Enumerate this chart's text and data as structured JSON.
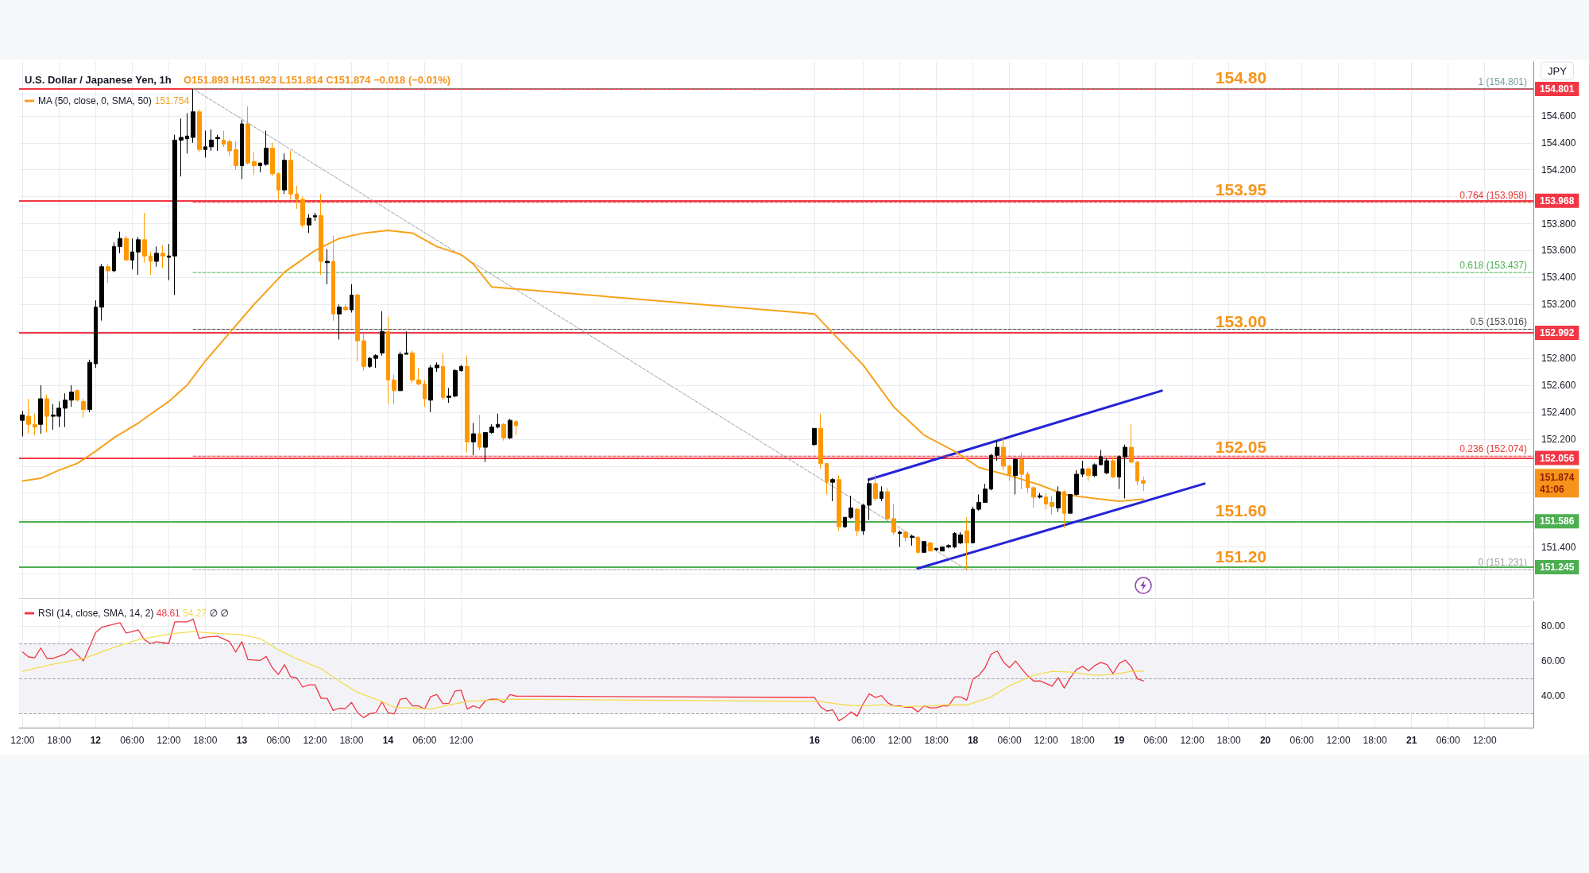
{
  "chart_data": [
    {
      "type": "candlestick",
      "title": "U.S. Dollar / Japanese Yen, 1h",
      "subtitle": "O151.893 H151.923 L151.814 C151.874 −0.018 (−0.01%)",
      "ylabel": "JPY",
      "annotations": [
        "151.754",
        "151.874",
        "41:06",
        {
          "text": "154.80",
          "x": "--02-19T20:00",
          "y": 154.801
        },
        {
          "text": "153.95",
          "x": "--02-19T20:00",
          "y": 153.968
        },
        {
          "text": "153.00",
          "x": "--02-19T20:00",
          "y": 152.992
        },
        {
          "text": "152.05",
          "x": "--02-19T20:00",
          "y": 152.056
        },
        {
          "text": "151.60",
          "x": "--02-19T20:00",
          "y": 151.586
        },
        {
          "text": "151.20",
          "x": "--02-19T20:00",
          "y": 151.245
        }
      ],
      "x": [
        "--02-11T12:00",
        "--02-11T13:00",
        "--02-11T14:00",
        "--02-11T15:00",
        "--02-11T16:00",
        "--02-11T17:00",
        "--02-11T18:00",
        "--02-11T19:00",
        "--02-11T20:00",
        "--02-11T21:00",
        "--02-11T22:00",
        "--02-11T23:00",
        "--02-12T00:00",
        "--02-12T01:00",
        "--02-12T02:00",
        "--02-12T03:00",
        "--02-12T04:00",
        "--02-12T05:00",
        "--02-12T06:00",
        "--02-12T07:00",
        "--02-12T08:00",
        "--02-12T09:00",
        "--02-12T10:00",
        "--02-12T11:00",
        "--02-12T12:00",
        "--02-12T13:00",
        "--02-12T14:00",
        "--02-12T15:00",
        "--02-12T16:00",
        "--02-12T17:00",
        "--02-12T18:00",
        "--02-12T19:00",
        "--02-12T20:00",
        "--02-12T21:00",
        "--02-12T22:00",
        "--02-12T23:00",
        "--02-13T00:00",
        "--02-13T01:00",
        "--02-13T02:00",
        "--02-13T03:00",
        "--02-13T04:00",
        "--02-13T05:00",
        "--02-13T06:00",
        "--02-13T07:00",
        "--02-13T08:00",
        "--02-13T09:00",
        "--02-13T10:00",
        "--02-13T11:00",
        "--02-13T12:00",
        "--02-13T13:00",
        "--02-13T14:00",
        "--02-13T15:00",
        "--02-13T16:00",
        "--02-13T17:00",
        "--02-13T18:00",
        "--02-13T19:00",
        "--02-13T20:00",
        "--02-13T21:00",
        "--02-13T22:00",
        "--02-13T23:00",
        "--02-14T00:00",
        "--02-14T01:00",
        "--02-14T02:00",
        "--02-14T03:00",
        "--02-14T04:00",
        "--02-14T05:00",
        "--02-14T06:00",
        "--02-14T07:00",
        "--02-14T08:00",
        "--02-14T09:00",
        "--02-14T10:00",
        "--02-14T11:00",
        "--02-14T12:00",
        "--02-14T13:00",
        "--02-14T14:00",
        "--02-14T15:00",
        "--02-14T16:00",
        "--02-14T17:00",
        "--02-14T18:00",
        "--02-14T19:00",
        "--02-14T20:00",
        "--02-14T21:00",
        "--02-16T22:00",
        "--02-16T23:00",
        "--02-17T00:00",
        "--02-17T01:00",
        "--02-17T02:00",
        "--02-17T03:00",
        "--02-17T04:00",
        "--02-17T05:00",
        "--02-17T06:00",
        "--02-17T07:00",
        "--02-17T08:00",
        "--02-17T09:00",
        "--02-17T10:00",
        "--02-17T11:00",
        "--02-17T12:00",
        "--02-17T13:00",
        "--02-17T14:00",
        "--02-17T15:00",
        "--02-17T16:00",
        "--02-17T17:00",
        "--02-17T18:00",
        "--02-17T19:00",
        "--02-17T20:00",
        "--02-17T21:00",
        "--02-17T22:00",
        "--02-17T23:00",
        "--02-18T00:00",
        "--02-18T01:00",
        "--02-18T02:00",
        "--02-18T03:00",
        "--02-18T04:00",
        "--02-18T05:00",
        "--02-18T06:00",
        "--02-18T07:00",
        "--02-18T08:00",
        "--02-18T09:00",
        "--02-18T10:00",
        "--02-18T11:00",
        "--02-18T12:00",
        "--02-18T13:00",
        "--02-18T14:00",
        "--02-18T15:00",
        "--02-18T16:00",
        "--02-18T17:00",
        "--02-18T18:00",
        "--02-18T19:00",
        "--02-18T20:00",
        "--02-18T21:00",
        "--02-18T22:00",
        "--02-18T23:00",
        "--02-19T00:00",
        "--02-19T01:00",
        "--02-19T02:00",
        "--02-19T03:00",
        "--02-19T04:00"
      ],
      "ohlc": [
        [
          152.34,
          152.41,
          152.22,
          152.38
        ],
        [
          152.37,
          152.5,
          152.24,
          152.31
        ],
        [
          152.31,
          152.39,
          152.23,
          152.29
        ],
        [
          152.31,
          152.6,
          152.24,
          152.5
        ],
        [
          152.5,
          152.53,
          152.25,
          152.37
        ],
        [
          152.37,
          152.46,
          152.27,
          152.38
        ],
        [
          152.37,
          152.48,
          152.29,
          152.43
        ],
        [
          152.43,
          152.54,
          152.29,
          152.49
        ],
        [
          152.49,
          152.6,
          152.44,
          152.55
        ],
        [
          152.56,
          152.57,
          152.48,
          152.49
        ],
        [
          152.48,
          152.5,
          152.36,
          152.42
        ],
        [
          152.42,
          152.79,
          152.4,
          152.77
        ],
        [
          152.76,
          153.23,
          152.73,
          153.18
        ],
        [
          153.18,
          153.5,
          153.08,
          153.48
        ],
        [
          153.48,
          153.5,
          153.36,
          153.45
        ],
        [
          153.45,
          153.66,
          153.44,
          153.63
        ],
        [
          153.63,
          153.74,
          153.58,
          153.69
        ],
        [
          153.69,
          153.71,
          153.53,
          153.53
        ],
        [
          153.53,
          153.69,
          153.46,
          153.59
        ],
        [
          153.59,
          153.7,
          153.42,
          153.68
        ],
        [
          153.68,
          153.88,
          153.51,
          153.56
        ],
        [
          153.56,
          153.59,
          153.42,
          153.52
        ],
        [
          153.52,
          153.63,
          153.48,
          153.58
        ],
        [
          153.58,
          153.64,
          153.47,
          153.56
        ],
        [
          153.55,
          153.65,
          153.38,
          153.56
        ],
        [
          153.56,
          154.46,
          153.27,
          154.42
        ],
        [
          154.42,
          154.58,
          154.15,
          154.44
        ],
        [
          154.43,
          154.62,
          154.32,
          154.45
        ],
        [
          154.44,
          154.8,
          154.4,
          154.63
        ],
        [
          154.63,
          154.65,
          154.33,
          154.35
        ],
        [
          154.35,
          154.49,
          154.29,
          154.37
        ],
        [
          154.37,
          154.5,
          154.34,
          154.42
        ],
        [
          154.43,
          154.46,
          154.34,
          154.44
        ],
        [
          154.42,
          154.49,
          154.37,
          154.39
        ],
        [
          154.41,
          154.42,
          154.3,
          154.34
        ],
        [
          154.35,
          154.41,
          154.2,
          154.23
        ],
        [
          154.23,
          154.57,
          154.13,
          154.54
        ],
        [
          154.54,
          154.67,
          154.24,
          154.25
        ],
        [
          154.26,
          154.33,
          154.16,
          154.23
        ],
        [
          154.23,
          154.25,
          154.18,
          154.25
        ],
        [
          154.24,
          154.49,
          154.23,
          154.36
        ],
        [
          154.36,
          154.4,
          154.15,
          154.17
        ],
        [
          154.17,
          154.18,
          153.98,
          154.05
        ],
        [
          154.05,
          154.32,
          154.02,
          154.27
        ],
        [
          154.27,
          154.34,
          153.98,
          154.02
        ],
        [
          154.02,
          154.08,
          153.91,
          153.98
        ],
        [
          153.98,
          154.0,
          153.77,
          153.79
        ],
        [
          153.79,
          153.87,
          153.73,
          153.84
        ],
        [
          153.85,
          153.88,
          153.82,
          153.86
        ],
        [
          153.86,
          154.02,
          153.42,
          153.52
        ],
        [
          153.51,
          153.61,
          153.35,
          153.52
        ],
        [
          153.52,
          153.71,
          153.08,
          153.13
        ],
        [
          153.13,
          153.2,
          152.94,
          153.18
        ],
        [
          153.18,
          153.2,
          153.15,
          153.16
        ],
        [
          153.16,
          153.35,
          153.14,
          153.27
        ],
        [
          153.27,
          153.28,
          152.78,
          152.93
        ],
        [
          152.93,
          152.98,
          152.71,
          152.74
        ],
        [
          152.74,
          152.81,
          152.73,
          152.8
        ],
        [
          152.8,
          152.83,
          152.73,
          152.82
        ],
        [
          152.84,
          153.15,
          152.82,
          153.0
        ],
        [
          153.0,
          153.11,
          152.46,
          152.64
        ],
        [
          152.64,
          152.68,
          152.46,
          152.56
        ],
        [
          152.56,
          152.85,
          152.56,
          152.83
        ],
        [
          152.83,
          153.0,
          152.83,
          152.84
        ],
        [
          152.84,
          152.86,
          152.62,
          152.64
        ],
        [
          152.64,
          152.73,
          152.6,
          152.61
        ],
        [
          152.61,
          152.64,
          152.44,
          152.5
        ],
        [
          152.49,
          152.75,
          152.4,
          152.73
        ],
        [
          152.73,
          152.77,
          152.7,
          152.75
        ],
        [
          152.74,
          152.84,
          152.49,
          152.51
        ],
        [
          152.51,
          152.58,
          152.47,
          152.52
        ],
        [
          152.52,
          152.72,
          152.51,
          152.71
        ],
        [
          152.71,
          152.75,
          152.7,
          152.74
        ],
        [
          152.74,
          152.82,
          152.1,
          152.18
        ],
        [
          152.18,
          152.32,
          152.08,
          152.24
        ],
        [
          152.24,
          152.38,
          152.12,
          152.14
        ],
        [
          152.14,
          152.25,
          152.03,
          152.25
        ],
        [
          152.25,
          152.31,
          152.24,
          152.29
        ],
        [
          152.29,
          152.39,
          152.28,
          152.31
        ],
        [
          152.31,
          152.32,
          152.19,
          152.21
        ],
        [
          152.21,
          152.35,
          152.2,
          152.34
        ],
        [
          152.33,
          152.34,
          152.23,
          152.3
        ],
        [
          152.16,
          152.28,
          152.15,
          152.28
        ],
        [
          152.28,
          152.39,
          151.98,
          152.02
        ],
        [
          152.02,
          152.02,
          151.79,
          151.88
        ],
        [
          151.88,
          151.91,
          151.74,
          151.9
        ],
        [
          151.9,
          151.93,
          151.52,
          151.55
        ],
        [
          151.55,
          151.62,
          151.54,
          151.62
        ],
        [
          151.62,
          151.78,
          151.61,
          151.69
        ],
        [
          151.68,
          151.69,
          151.48,
          151.52
        ],
        [
          151.52,
          151.72,
          151.49,
          151.71
        ],
        [
          151.71,
          151.91,
          151.6,
          151.87
        ],
        [
          151.87,
          151.94,
          151.74,
          151.76
        ],
        [
          151.76,
          151.85,
          151.74,
          151.81
        ],
        [
          151.81,
          151.84,
          151.6,
          151.61
        ],
        [
          151.61,
          151.72,
          151.49,
          151.51
        ],
        [
          151.5,
          151.52,
          151.4,
          151.51
        ],
        [
          151.51,
          151.52,
          151.44,
          151.47
        ],
        [
          151.47,
          151.49,
          151.41,
          151.48
        ],
        [
          151.47,
          151.48,
          151.35,
          151.36
        ],
        [
          151.36,
          151.44,
          151.36,
          151.44
        ],
        [
          151.43,
          151.44,
          151.37,
          151.37
        ],
        [
          151.38,
          151.39,
          151.37,
          151.39
        ],
        [
          151.37,
          151.4,
          151.37,
          151.4
        ],
        [
          151.4,
          151.42,
          151.39,
          151.41
        ],
        [
          151.4,
          151.51,
          151.39,
          151.5
        ],
        [
          151.43,
          151.51,
          151.42,
          151.49
        ],
        [
          151.52,
          151.62,
          151.23,
          151.43
        ],
        [
          151.43,
          151.7,
          151.43,
          151.68
        ],
        [
          151.68,
          151.79,
          151.67,
          151.73
        ],
        [
          151.73,
          151.87,
          151.73,
          151.83
        ],
        [
          151.83,
          152.09,
          151.82,
          152.08
        ],
        [
          152.08,
          152.19,
          152.04,
          152.14
        ],
        [
          152.14,
          152.22,
          151.97,
          152.0
        ],
        [
          152.0,
          152.01,
          151.89,
          151.94
        ],
        [
          151.93,
          152.06,
          151.79,
          152.05
        ],
        [
          152.05,
          152.1,
          151.83,
          151.94
        ],
        [
          151.94,
          151.96,
          151.8,
          151.84
        ],
        [
          151.84,
          151.85,
          151.69,
          151.77
        ],
        [
          151.77,
          151.8,
          151.76,
          151.78
        ],
        [
          151.77,
          151.8,
          151.68,
          151.72
        ],
        [
          151.73,
          151.78,
          151.64,
          151.7
        ],
        [
          151.69,
          151.85,
          151.66,
          151.81
        ],
        [
          151.81,
          151.82,
          151.54,
          151.65
        ],
        [
          151.65,
          151.79,
          151.65,
          151.79
        ],
        [
          151.79,
          151.97,
          151.78,
          151.94
        ],
        [
          151.94,
          152.04,
          151.92,
          151.98
        ],
        [
          151.98,
          151.99,
          151.89,
          151.93
        ],
        [
          151.93,
          152.02,
          151.92,
          152.01
        ],
        [
          152.01,
          152.12,
          152.01,
          152.07
        ],
        [
          151.95,
          152.06,
          151.94,
          152.04
        ],
        [
          152.04,
          152.07,
          151.91,
          151.92
        ],
        [
          151.92,
          152.08,
          151.83,
          152.07
        ],
        [
          152.07,
          152.16,
          151.76,
          152.14
        ],
        [
          152.14,
          152.31,
          152.02,
          152.03
        ],
        [
          152.03,
          152.04,
          151.86,
          151.89
        ],
        [
          151.893,
          151.923,
          151.814,
          151.874
        ]
      ],
      "series": [
        {
          "type": "line",
          "color": "#2424d6",
          "x": [
            "--02-17T06:54",
            "--02-19T07:00"
          ],
          "values": [
            151.9,
            152.56
          ]
        },
        {
          "type": "line",
          "color": "#2424d6",
          "x": [
            "--02-17T14:54",
            "--02-19T14:00"
          ],
          "values": [
            151.24,
            151.87
          ]
        },
        {
          "type": "line",
          "color": "#9e9e9e",
          "line_style": "dashed",
          "x": [
            "--02-12T16:00",
            "--02-17T23:00"
          ],
          "values": [
            154.801,
            151.231
          ]
        },
        {
          "type": "line",
          "color": "#6f9f9c",
          "line_style": "dashed",
          "x": [
            "--02-12T16:00",
            "--02-21T20:00"
          ],
          "values": [
            154.801,
            154.801
          ],
          "value_labels": [
            null,
            "1 (154.801)"
          ]
        },
        {
          "type": "line",
          "color": "#e53935",
          "line_style": "dashed",
          "x": [
            "--02-12T16:00",
            "--02-21T20:00"
          ],
          "values": [
            153.958,
            153.958
          ],
          "value_labels": [
            null,
            "0.764 (153.958)"
          ]
        },
        {
          "type": "line",
          "color": "#4caf50",
          "line_style": "dashed",
          "x": [
            "--02-12T16:00",
            "--02-21T20:00"
          ],
          "values": [
            153.437,
            153.437
          ],
          "value_labels": [
            null,
            "0.618 (153.437)"
          ]
        },
        {
          "type": "line",
          "color": "#4a4a4a",
          "line_style": "dashed",
          "x": [
            "--02-12T16:00",
            "--02-21T20:00"
          ],
          "values": [
            153.016,
            153.016
          ],
          "value_labels": [
            null,
            "0.5 (153.016)"
          ]
        },
        {
          "type": "line",
          "color": "#e53935",
          "line_style": "dashed",
          "x": [
            "--02-12T16:00",
            "--02-21T20:00"
          ],
          "values": [
            152.074,
            152.074
          ],
          "value_labels": [
            null,
            "0.236 (152.074)"
          ]
        },
        {
          "type": "line",
          "color": "#9e9e9e",
          "line_style": "dashed",
          "x": [
            "--02-12T16:00",
            "--02-21T20:00"
          ],
          "values": [
            151.231,
            151.231
          ],
          "value_labels": [
            null,
            "0 (151.231)"
          ]
        },
        {
          "type": "line",
          "name": "MA (50, close, 0, SMA, 50)",
          "color": "#f7a21b",
          "x": [
            "--02-11T12:00",
            "--02-11T15:00",
            "--02-11T18:00",
            "--02-11T21:00",
            "--02-12T00:00",
            "--02-12T03:00",
            "--02-12T07:00",
            "--02-12T12:00",
            "--02-12T15:00",
            "--02-12T18:00",
            "--02-12T22:00",
            "--02-13T02:00",
            "--02-13T07:00",
            "--02-13T12:00",
            "--02-13T16:00",
            "--02-13T20:00",
            "--02-14T00:00",
            "--02-14T04:00",
            "--02-14T08:00",
            "--02-14T12:00",
            "--02-14T14:00",
            "--02-14T17:00",
            "--02-16T22:00",
            "--02-17T06:00",
            "--02-17T11:00",
            "--02-17T16:00",
            "--02-17T21:00",
            "--02-18T01:00",
            "--02-18T06:00",
            "--02-18T11:00",
            "--02-18T15:00",
            "--02-18T20:00",
            "--02-19T00:00",
            "--02-19T04:00"
          ],
          "values": [
            151.89,
            151.91,
            151.97,
            152.02,
            152.11,
            152.21,
            152.32,
            152.48,
            152.6,
            152.78,
            152.99,
            153.2,
            153.44,
            153.6,
            153.69,
            153.73,
            153.75,
            153.73,
            153.63,
            153.57,
            153.5,
            153.33,
            153.13,
            152.75,
            152.44,
            152.23,
            152.11,
            151.99,
            151.93,
            151.86,
            151.79,
            151.76,
            151.74,
            151.754
          ]
        }
      ],
      "ref_lines": [
        {
          "axis": "y",
          "value": 154.801,
          "label": "154.801",
          "color": "#f23645"
        },
        {
          "axis": "y",
          "value": 153.968,
          "label": "153.968",
          "color": "#f23645"
        },
        {
          "axis": "y",
          "value": 152.992,
          "label": "152.992",
          "color": "#f23645"
        },
        {
          "axis": "y",
          "value": 152.056,
          "label": "152.056",
          "color": "#f23645"
        },
        {
          "axis": "y",
          "value": 151.586,
          "label": "151.586",
          "color": "#4caf50"
        },
        {
          "axis": "y",
          "value": 151.245,
          "label": "151.245",
          "color": "#4caf50"
        }
      ],
      "xlim": [
        "--02-11T11:26",
        "--02-21T20:00"
      ],
      "xticks": [
        {
          "value": "--02-11T12:00",
          "label": null
        },
        {
          "value": "--02-11T18:00",
          "label": null
        },
        {
          "value": "--02-12T00:00",
          "label": null
        },
        {
          "value": "--02-12T06:00",
          "label": null
        },
        {
          "value": "--02-12T12:00",
          "label": null
        },
        {
          "value": "--02-12T18:00",
          "label": null
        },
        {
          "value": "--02-13T00:00",
          "label": null
        },
        {
          "value": "--02-13T06:00",
          "label": null
        },
        {
          "value": "--02-13T12:00",
          "label": null
        },
        {
          "value": "--02-13T18:00",
          "label": null
        },
        {
          "value": "--02-14T00:00",
          "label": null
        },
        {
          "value": "--02-14T06:00",
          "label": null
        },
        {
          "value": "--02-14T12:00",
          "label": null
        },
        {
          "value": "--02-16T22:00",
          "label": null
        },
        {
          "value": "--02-17T06:00",
          "label": null
        },
        {
          "value": "--02-17T12:00",
          "label": null
        },
        {
          "value": "--02-17T18:00",
          "label": null
        },
        {
          "value": "--02-18T00:00",
          "label": null
        },
        {
          "value": "--02-18T06:00",
          "label": null
        },
        {
          "value": "--02-18T12:00",
          "label": null
        },
        {
          "value": "--02-18T18:00",
          "label": null
        },
        {
          "value": "--02-19T00:00",
          "label": null
        },
        {
          "value": "--02-19T06:00",
          "label": null
        },
        {
          "value": "--02-19T12:00",
          "label": null
        },
        {
          "value": "--02-19T18:00",
          "label": null
        },
        {
          "value": "--02-20T00:00",
          "label": null
        },
        {
          "value": "--02-20T06:00",
          "label": null
        },
        {
          "value": "--02-20T12:00",
          "label": null
        },
        {
          "value": "--02-20T18:00",
          "label": null
        },
        {
          "value": "--02-21T00:00",
          "label": null
        },
        {
          "value": "--02-21T06:00",
          "label": null
        },
        {
          "value": "--02-21T12:00",
          "label": null
        }
      ],
      "ylim": [
        151.02,
        155
      ],
      "yticks": [
        {
          "value": 151.2,
          "label": null
        },
        {
          "value": 151.4,
          "label": "151.400"
        },
        {
          "value": 151.6,
          "label": null
        },
        {
          "value": 151.8,
          "label": null
        },
        {
          "value": 152,
          "label": null
        },
        {
          "value": 152.2,
          "label": "152.200"
        },
        {
          "value": 152.4,
          "label": "152.400"
        },
        {
          "value": 152.6,
          "label": "152.600"
        },
        {
          "value": 152.8,
          "label": "152.800"
        },
        {
          "value": 153,
          "label": null
        },
        {
          "value": 153.2,
          "label": "153.200"
        },
        {
          "value": 153.4,
          "label": "153.400"
        },
        {
          "value": 153.6,
          "label": "153.600"
        },
        {
          "value": 153.8,
          "label": "153.800"
        },
        {
          "value": 154,
          "label": null
        },
        {
          "value": 154.2,
          "label": "154.200"
        },
        {
          "value": 154.4,
          "label": "154.400"
        },
        {
          "value": 154.6,
          "label": "154.600"
        },
        {
          "value": 154.8,
          "label": null
        }
      ],
      "grid": true,
      "legend": "top left",
      "tick_labels": "y"
    },
    {
      "type": "line",
      "annotations": [
        "48.61",
        "54.27",
        "∅ ∅"
      ],
      "series": [
        {
          "name": "RSI (14, close, SMA, 14, 2)",
          "color": "#f23645",
          "x": [
            "--02-11T12:00",
            "--02-11T13:00",
            "--02-11T14:00",
            "--02-11T15:00",
            "--02-11T16:00",
            "--02-11T17:00",
            "--02-11T19:00",
            "--02-11T20:00",
            "--02-11T22:00",
            "--02-12T00:00",
            "--02-12T01:00",
            "--02-12T04:00",
            "--02-12T05:00",
            "--02-12T06:00",
            "--02-12T07:00",
            "--02-12T08:00",
            "--02-12T09:00",
            "--02-12T10:00",
            "--02-12T12:00",
            "--02-12T13:00",
            "--02-12T15:00",
            "--02-12T16:00",
            "--02-12T17:00",
            "--02-12T18:00",
            "--02-12T20:00",
            "--02-12T22:00",
            "--02-12T23:00",
            "--02-13T00:00",
            "--02-13T01:00",
            "--02-13T03:00",
            "--02-13T04:00",
            "--02-13T05:00",
            "--02-13T06:00",
            "--02-13T07:00",
            "--02-13T08:00",
            "--02-13T09:00",
            "--02-13T10:00",
            "--02-13T11:00",
            "--02-13T12:00",
            "--02-13T13:00",
            "--02-13T14:00",
            "--02-13T15:00",
            "--02-13T16:00",
            "--02-13T17:00",
            "--02-13T18:00",
            "--02-13T19:00",
            "--02-13T20:00",
            "--02-13T21:00",
            "--02-13T22:00",
            "--02-13T23:00",
            "--02-14T00:00",
            "--02-14T01:00",
            "--02-14T02:00",
            "--02-14T03:00",
            "--02-14T04:00",
            "--02-14T05:00",
            "--02-14T06:00",
            "--02-14T07:00",
            "--02-14T08:00",
            "--02-14T09:00",
            "--02-14T10:00",
            "--02-14T11:00",
            "--02-14T12:00",
            "--02-14T13:00",
            "--02-14T14:00",
            "--02-14T15:00",
            "--02-14T16:00",
            "--02-14T17:00",
            "--02-14T18:00",
            "--02-14T19:00",
            "--02-14T20:00",
            "--02-14T21:00",
            "--02-16T22:00",
            "--02-16T23:00",
            "--02-17T00:00",
            "--02-17T01:00",
            "--02-17T02:00",
            "--02-17T03:00",
            "--02-17T04:00",
            "--02-17T05:00",
            "--02-17T06:00",
            "--02-17T07:00",
            "--02-17T08:00",
            "--02-17T09:00",
            "--02-17T10:00",
            "--02-17T11:00",
            "--02-17T12:00",
            "--02-17T13:00",
            "--02-17T14:00",
            "--02-17T15:00",
            "--02-17T16:00",
            "--02-17T17:00",
            "--02-17T18:00",
            "--02-17T19:00",
            "--02-17T20:00",
            "--02-17T21:00",
            "--02-17T22:00",
            "--02-17T23:00",
            "--02-18T00:00",
            "--02-18T01:00",
            "--02-18T02:00",
            "--02-18T03:00",
            "--02-18T04:00",
            "--02-18T05:00",
            "--02-18T06:00",
            "--02-18T07:00",
            "--02-18T08:00",
            "--02-18T09:00",
            "--02-18T10:00",
            "--02-18T11:00",
            "--02-18T12:00",
            "--02-18T13:00",
            "--02-18T14:00",
            "--02-18T15:00",
            "--02-18T16:00",
            "--02-18T17:00",
            "--02-18T18:00",
            "--02-18T19:00",
            "--02-18T20:00",
            "--02-18T21:00",
            "--02-18T22:00",
            "--02-18T23:00",
            "--02-19T00:00",
            "--02-19T01:00",
            "--02-19T02:00",
            "--02-19T03:00",
            "--02-19T04:00"
          ],
          "values": [
            65.1,
            62.3,
            61.8,
            67.4,
            61.5,
            61.5,
            63.9,
            66.9,
            60.0,
            76.2,
            79.2,
            81.8,
            75.9,
            76.7,
            77.7,
            72.1,
            70.0,
            71.0,
            70.0,
            82.3,
            82.3,
            83.9,
            72.8,
            73.6,
            74.1,
            71.0,
            65.1,
            71.0,
            60.8,
            60.3,
            62.6,
            56.2,
            52.3,
            57.9,
            51.0,
            50.3,
            45.1,
            46.4,
            46.4,
            38.7,
            38.7,
            31.8,
            33.1,
            32.8,
            36.4,
            30.5,
            27.7,
            30.0,
            30.5,
            36.7,
            30.5,
            29.8,
            38.2,
            38.7,
            34.4,
            34.4,
            32.6,
            39.7,
            40.8,
            35.6,
            35.9,
            42.8,
            43.3,
            32.6,
            34.4,
            33.1,
            37.4,
            38.2,
            38.2,
            36.2,
            40.8,
            40.0,
            39.2,
            33.9,
            31.5,
            32.1,
            25.9,
            28.0,
            31.0,
            28.5,
            35.7,
            41.3,
            39.2,
            40.3,
            36.2,
            34.4,
            34.4,
            33.6,
            33.6,
            31.0,
            34.4,
            33.3,
            33.3,
            34.4,
            34.4,
            39.5,
            39.5,
            37.7,
            49.8,
            51.8,
            56.2,
            63.9,
            65.7,
            59.5,
            56.2,
            60.0,
            55.6,
            51.5,
            48.5,
            48.7,
            47.2,
            45.6,
            50.5,
            44.6,
            50.5,
            55.1,
            56.9,
            54.4,
            57.4,
            59.2,
            57.9,
            52.8,
            58.5,
            60.5,
            56.7,
            49.8,
            48.61
          ]
        },
        {
          "color": "#f2dc4e",
          "x": [
            "--02-11T12:00",
            "--02-11T17:00",
            "--02-11T22:00",
            "--02-12T03:00",
            "--02-12T07:00",
            "--02-12T12:00",
            "--02-12T16:00",
            "--02-12T19:00",
            "--02-13T00:00",
            "--02-13T03:00",
            "--02-13T06:00",
            "--02-13T09:00",
            "--02-13T13:00",
            "--02-13T16:00",
            "--02-13T19:00",
            "--02-13T23:00",
            "--02-14T01:00",
            "--02-14T04:00",
            "--02-14T07:00",
            "--02-14T10:00",
            "--02-14T13:00",
            "--02-14T17:00",
            "--02-14T21:00",
            "--02-16T23:00",
            "--02-17T03:00",
            "--02-17T06:00",
            "--02-17T09:00",
            "--02-17T12:00",
            "--02-17T17:00",
            "--02-17T19:00",
            "--02-17T23:00",
            "--02-18T03:00",
            "--02-18T06:00",
            "--02-18T10:00",
            "--02-18T13:00",
            "--02-18T16:00",
            "--02-18T20:00",
            "--02-18T23:00",
            "--02-19T02:00",
            "--02-19T04:00"
          ],
          "values": [
            54.1,
            58.2,
            61.3,
            67.7,
            72.1,
            75.4,
            76.7,
            75.9,
            74.9,
            72.8,
            66.4,
            61.3,
            55.6,
            48.5,
            42.1,
            36.9,
            33.6,
            33.1,
            32.6,
            34.9,
            36.9,
            37.7,
            38.2,
            36.9,
            34.9,
            34.4,
            35.1,
            33.9,
            34.4,
            34.9,
            34.9,
            39.5,
            45.9,
            51.8,
            54.1,
            53.6,
            51.8,
            52.3,
            54.1,
            54.27
          ]
        }
      ],
      "ref_lines": [
        {
          "axis": "y",
          "value": 70,
          "color": "#a3a6af",
          "line_style": "dashed"
        },
        {
          "axis": "y",
          "value": 50,
          "color": "#a3a6af",
          "line_style": "dashed"
        },
        {
          "axis": "y",
          "value": 30,
          "color": "#a3a6af",
          "line_style": "dashed"
        }
      ],
      "bands": [
        {
          "axis": "y",
          "from": 30,
          "to": 70,
          "color": "#f3f3f7"
        }
      ],
      "xlim": [
        "--02-11T11:26",
        "--02-21T20:00"
      ],
      "xticks": [
        {
          "value": "--02-11T12:00",
          "label": "12:00"
        },
        {
          "value": "--02-11T18:00",
          "label": "18:00"
        },
        {
          "value": "--02-12T00:00",
          "label": "12"
        },
        {
          "value": "--02-12T06:00",
          "label": "06:00"
        },
        {
          "value": "--02-12T12:00",
          "label": "12:00"
        },
        {
          "value": "--02-12T18:00",
          "label": "18:00"
        },
        {
          "value": "--02-13T00:00",
          "label": "13"
        },
        {
          "value": "--02-13T06:00",
          "label": "06:00"
        },
        {
          "value": "--02-13T12:00",
          "label": "12:00"
        },
        {
          "value": "--02-13T18:00",
          "label": "18:00"
        },
        {
          "value": "--02-14T00:00",
          "label": "14"
        },
        {
          "value": "--02-14T06:00",
          "label": "06:00"
        },
        {
          "value": "--02-14T12:00",
          "label": "12:00"
        },
        {
          "value": "--02-16T22:00",
          "label": "16"
        },
        {
          "value": "--02-17T06:00",
          "label": "06:00"
        },
        {
          "value": "--02-17T12:00",
          "label": "12:00"
        },
        {
          "value": "--02-17T18:00",
          "label": "18:00"
        },
        {
          "value": "--02-18T00:00",
          "label": "18"
        },
        {
          "value": "--02-18T06:00",
          "label": "06:00"
        },
        {
          "value": "--02-18T12:00",
          "label": "12:00"
        },
        {
          "value": "--02-18T18:00",
          "label": "18:00"
        },
        {
          "value": "--02-19T00:00",
          "label": "19"
        },
        {
          "value": "--02-19T06:00",
          "label": "06:00"
        },
        {
          "value": "--02-19T12:00",
          "label": "12:00"
        },
        {
          "value": "--02-19T18:00",
          "label": "18:00"
        },
        {
          "value": "--02-20T00:00",
          "label": "20"
        },
        {
          "value": "--02-20T06:00",
          "label": "06:00"
        },
        {
          "value": "--02-20T12:00",
          "label": "12:00"
        },
        {
          "value": "--02-20T18:00",
          "label": "18:00"
        },
        {
          "value": "--02-21T00:00",
          "label": "21"
        },
        {
          "value": "--02-21T06:00",
          "label": "06:00"
        },
        {
          "value": "--02-21T12:00",
          "label": "12:00"
        }
      ],
      "ylim": [
        22,
        94
      ],
      "yticks": [
        {
          "value": 40,
          "label": "40.00"
        },
        {
          "value": 60,
          "label": "60.00"
        },
        {
          "value": 80,
          "label": "80.00"
        }
      ],
      "grid": true,
      "legend": "top left"
    }
  ]
}
